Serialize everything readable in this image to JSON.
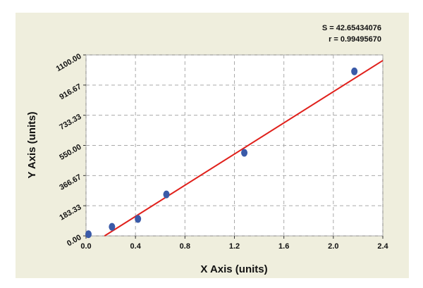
{
  "chart_data": {
    "type": "scatter",
    "x_label": "X Axis (units)",
    "y_label": "Y Axis (units)",
    "annotations": [
      "S = 42.65434076",
      "r = 0.99495670"
    ],
    "x": [
      0.02,
      0.21,
      0.42,
      0.65,
      1.28,
      2.17
    ],
    "values": [
      10,
      55,
      103,
      252,
      505,
      1000
    ],
    "color": "#3a5aa8",
    "fit_line": {
      "x": [
        0.15,
        2.4
      ],
      "y": [
        0,
        1066
      ],
      "color": "#e0201b"
    },
    "xlim": [
      0,
      2.4
    ],
    "ylim": [
      0,
      1100
    ],
    "xticks": [
      {
        "value": 0,
        "label": "0.0"
      },
      0.4,
      0.8,
      1.2,
      1.6,
      {
        "value": 2,
        "label": "2.0"
      },
      2.4
    ],
    "yticks": [
      {
        "value": 0,
        "label": "0.00"
      },
      183.33,
      366.67,
      {
        "value": 550,
        "label": "550.00"
      },
      733.33,
      916.67,
      {
        "value": 1100,
        "label": "1100.00"
      }
    ],
    "grid": true
  }
}
